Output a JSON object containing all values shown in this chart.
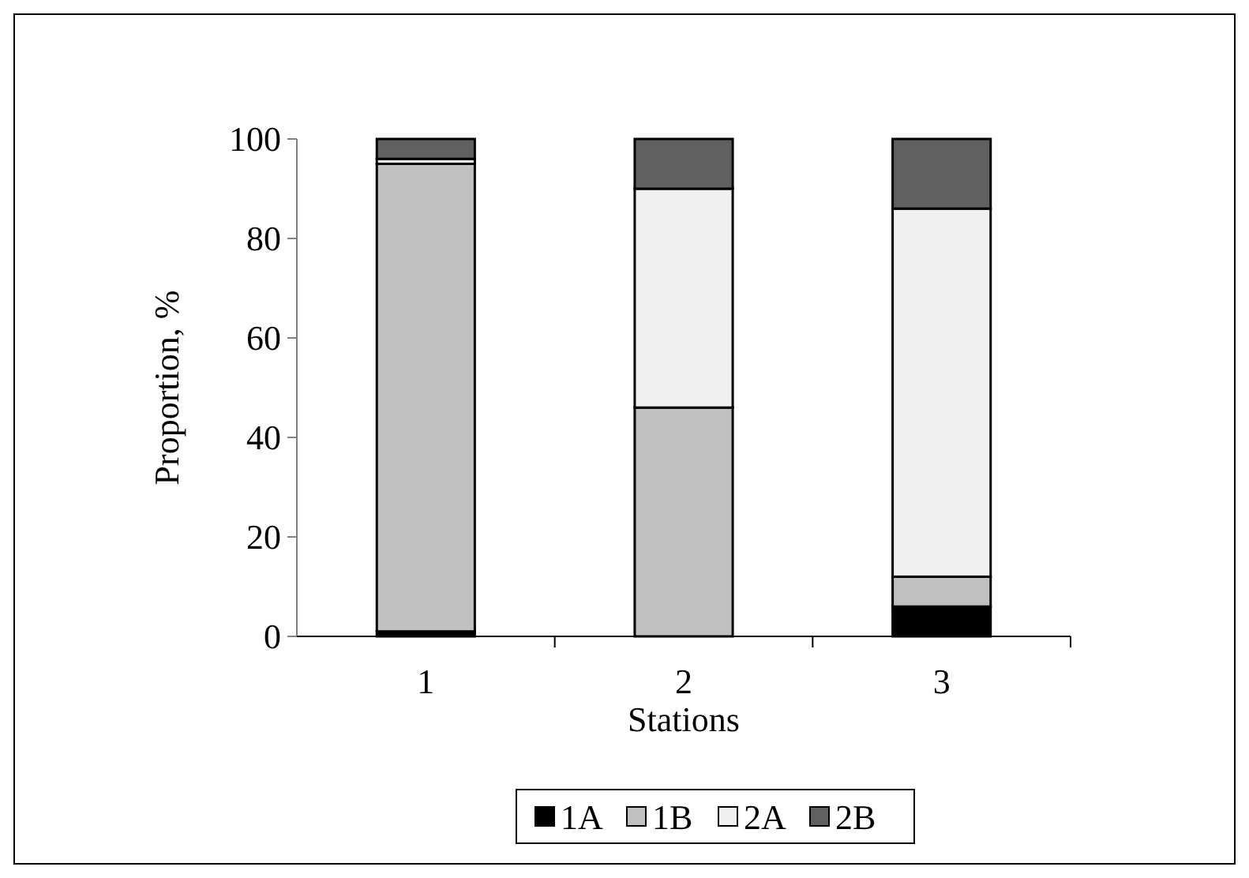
{
  "chart_data": {
    "type": "bar",
    "stacked": true,
    "xlabel": "Stations",
    "ylabel": "Proportion, %",
    "categories": [
      "1",
      "2",
      "3"
    ],
    "series": [
      {
        "name": "1A",
        "color": "#000000",
        "values": [
          1,
          0,
          6
        ]
      },
      {
        "name": "1B",
        "color": "#c0c0c0",
        "values": [
          94,
          46,
          6
        ]
      },
      {
        "name": "2A",
        "color": "#f0f0f0",
        "values": [
          1,
          44,
          74
        ]
      },
      {
        "name": "2B",
        "color": "#606060",
        "values": [
          4,
          10,
          14
        ]
      }
    ],
    "ylim": [
      0,
      100
    ],
    "yticks": [
      0,
      20,
      40,
      60,
      80,
      100
    ],
    "grid": false,
    "legend": "bottom"
  }
}
